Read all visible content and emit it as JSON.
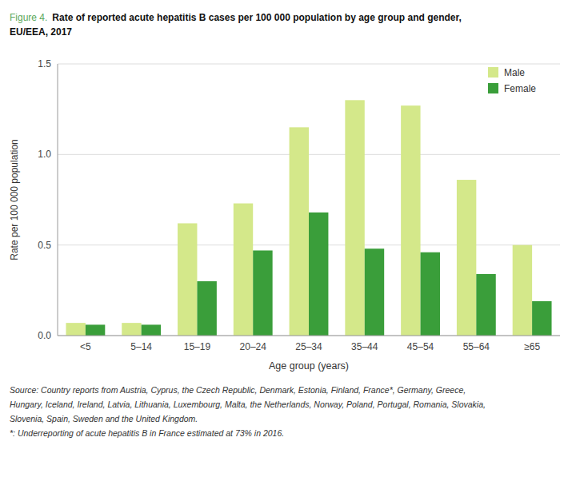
{
  "chart_data": {
    "type": "bar",
    "title": [
      "Figure 4.",
      "Rate of reported acute hepatitis B cases per 100 000 population by age group and gender,",
      "EU/EEA, 2017"
    ],
    "x_label": "Age group (years)",
    "y_label": "Rate per 100 000 population",
    "categories": [
      "<5",
      "5–14",
      "15–19",
      "20–24",
      "25–34",
      "35–44",
      "45–54",
      "55–64",
      "≥65"
    ],
    "series": [
      {
        "name": "Male",
        "color": "#d4e88a",
        "values": [
          0.07,
          0.07,
          0.62,
          0.73,
          1.15,
          1.3,
          1.27,
          0.86,
          0.5
        ]
      },
      {
        "name": "Female",
        "color": "#3a9e3a",
        "values": [
          0.06,
          0.06,
          0.3,
          0.47,
          0.68,
          0.48,
          0.46,
          0.34,
          0.19
        ]
      }
    ],
    "ylim": [
      0,
      1.5
    ],
    "yticks": [
      {
        "value": 0,
        "label": "0.0"
      },
      0.5,
      {
        "value": 1,
        "label": "1.0"
      },
      1.5
    ],
    "grid": true,
    "legend": "top-right",
    "annotations": [
      "Source: Country reports from Austria, Cyprus, the Czech Republic, Denmark, Estonia, Finland, France*, Germany, Greece,",
      "Hungary, Iceland, Ireland, Latvia, Lithuania, Luxembourg, Malta, the Netherlands, Norway, Poland, Portugal, Romania, Slovakia,",
      "Slovenia, Spain, Sweden and the United Kingdom.",
      "*: Underreporting of acute hepatitis B in France estimated at 73% in 2016."
    ]
  }
}
